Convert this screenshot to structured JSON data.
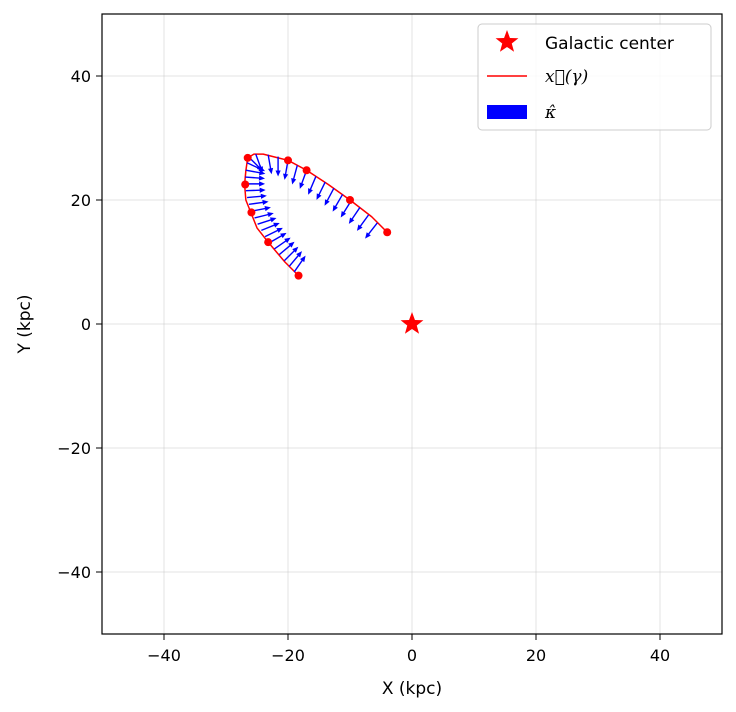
{
  "chart_data": {
    "type": "scatter",
    "title": "",
    "xlabel": "X (kpc)",
    "ylabel": "Y (kpc)",
    "xlim": [
      -50,
      50
    ],
    "ylim": [
      -50,
      50
    ],
    "xticks": [
      -40,
      -20,
      0,
      20,
      40
    ],
    "yticks": [
      -40,
      -20,
      0,
      20,
      40
    ],
    "xtick_labels": [
      "−40",
      "−20",
      "0",
      "20",
      "40"
    ],
    "ytick_labels": [
      "−40",
      "−20",
      "0",
      "20",
      "40"
    ],
    "grid": true,
    "legend_position": "top-right",
    "legend": [
      {
        "label": "Galactic center",
        "marker": "star",
        "color": "#ff0000"
      },
      {
        "label": "x⃗(γ)",
        "marker": "line",
        "color": "#ff0000"
      },
      {
        "label": "κ̂",
        "marker": "patch",
        "color": "#0000ff"
      }
    ],
    "galactic_center": {
      "x": 0,
      "y": 0
    },
    "curve": {
      "color": "#ff0000",
      "x": [
        -18.3,
        -20.5,
        -23.2,
        -25.0,
        -26.0,
        -26.8,
        -27.0,
        -26.8,
        -26.5,
        -25.5,
        -24.0,
        -22.0,
        -20.0,
        -17.0,
        -13.5,
        -10.0,
        -6.5,
        -4.0
      ],
      "y": [
        7.8,
        10.0,
        13.2,
        15.5,
        18.0,
        20.0,
        22.5,
        24.7,
        26.8,
        27.4,
        27.4,
        26.9,
        26.4,
        24.8,
        22.5,
        20.0,
        17.3,
        14.8
      ]
    },
    "points": {
      "color": "#ff0000",
      "x": [
        -18.3,
        -23.2,
        -25.9,
        -26.9,
        -26.5,
        -20.0,
        -17.0,
        -10.0,
        -4.0
      ],
      "y": [
        7.8,
        13.2,
        18.0,
        22.5,
        26.8,
        26.4,
        24.8,
        20.0,
        14.8
      ]
    },
    "vectors": {
      "color": "#0000ff",
      "length": 3.2,
      "bases": [
        {
          "x": -19.0,
          "y": 8.4,
          "angle": 55
        },
        {
          "x": -19.8,
          "y": 9.3,
          "angle": 50
        },
        {
          "x": -20.6,
          "y": 10.2,
          "angle": 45
        },
        {
          "x": -21.4,
          "y": 11.2,
          "angle": 40
        },
        {
          "x": -22.2,
          "y": 12.1,
          "angle": 35
        },
        {
          "x": -23.0,
          "y": 13.1,
          "angle": 30
        },
        {
          "x": -23.7,
          "y": 14.1,
          "angle": 26
        },
        {
          "x": -24.3,
          "y": 15.1,
          "angle": 22
        },
        {
          "x": -24.9,
          "y": 16.1,
          "angle": 18
        },
        {
          "x": -25.4,
          "y": 17.1,
          "angle": 14
        },
        {
          "x": -25.9,
          "y": 18.2,
          "angle": 11
        },
        {
          "x": -26.3,
          "y": 19.3,
          "angle": 8
        },
        {
          "x": -26.6,
          "y": 20.4,
          "angle": 5
        },
        {
          "x": -26.8,
          "y": 21.5,
          "angle": 2
        },
        {
          "x": -26.9,
          "y": 22.6,
          "angle": 0
        },
        {
          "x": -26.9,
          "y": 23.7,
          "angle": -4
        },
        {
          "x": -26.8,
          "y": 24.8,
          "angle": -10
        },
        {
          "x": -26.6,
          "y": 26.0,
          "angle": -25
        },
        {
          "x": -26.3,
          "y": 26.9,
          "angle": -45
        },
        {
          "x": -25.2,
          "y": 27.4,
          "angle": -70
        },
        {
          "x": -23.2,
          "y": 27.3,
          "angle": -80
        },
        {
          "x": -21.6,
          "y": 27.0,
          "angle": -90
        },
        {
          "x": -20.0,
          "y": 26.4,
          "angle": -100
        },
        {
          "x": -18.5,
          "y": 25.6,
          "angle": -105
        },
        {
          "x": -17.0,
          "y": 24.8,
          "angle": -110
        },
        {
          "x": -15.5,
          "y": 23.8,
          "angle": -113
        },
        {
          "x": -14.0,
          "y": 22.9,
          "angle": -116
        },
        {
          "x": -12.6,
          "y": 21.9,
          "angle": -118
        },
        {
          "x": -11.2,
          "y": 20.9,
          "angle": -120
        },
        {
          "x": -9.8,
          "y": 19.9,
          "angle": -122
        },
        {
          "x": -8.4,
          "y": 18.8,
          "angle": -124
        },
        {
          "x": -7.0,
          "y": 17.6,
          "angle": -126
        },
        {
          "x": -5.6,
          "y": 16.3,
          "angle": -128
        }
      ]
    }
  }
}
